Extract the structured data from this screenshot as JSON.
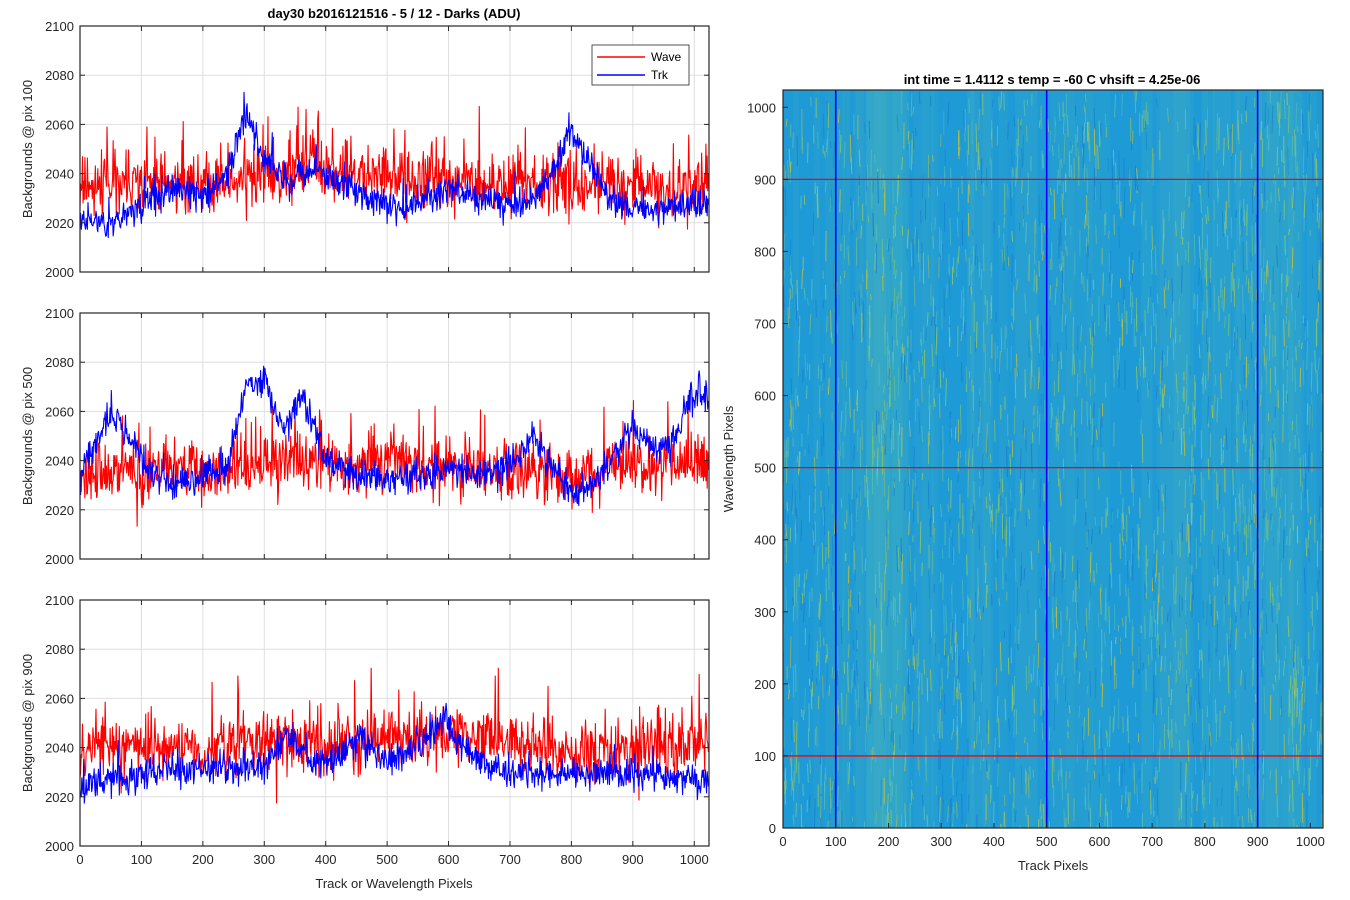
{
  "chart_data": [
    {
      "type": "line",
      "title": "day30 b2016121516 - 5 / 12 - Darks (ADU)",
      "xlabel": "",
      "ylabel": "Backgrounds @ pix 100",
      "xlim": [
        0,
        1024
      ],
      "ylim": [
        2000,
        2100
      ],
      "x_ticks": [
        "0",
        "100",
        "200",
        "300",
        "400",
        "500",
        "600",
        "700",
        "800",
        "900",
        "1000"
      ],
      "y_ticks": [
        "2000",
        "2020",
        "2040",
        "2060",
        "2080",
        "2100"
      ],
      "grid": true,
      "legend": {
        "placement": "top-right"
      },
      "x_count": 1024,
      "series": [
        {
          "name": "Wave",
          "color": "#ff0000",
          "baseline": 2035,
          "noise": 9,
          "spike_rate": 0.06,
          "spike_amp": 22,
          "seed": 11,
          "anchors": [
            [
              0,
              2034
            ],
            [
              150,
              2036
            ],
            [
              300,
              2038
            ],
            [
              380,
              2042
            ],
            [
              500,
              2038
            ],
            [
              650,
              2036
            ],
            [
              800,
              2035
            ],
            [
              1024,
              2036
            ]
          ]
        },
        {
          "name": "Trk",
          "color": "#0000ff",
          "baseline": 2030,
          "noise": 5,
          "spike_rate": 0.02,
          "spike_amp": 10,
          "seed": 23,
          "anchors": [
            [
              0,
              2022
            ],
            [
              40,
              2020
            ],
            [
              80,
              2024
            ],
            [
              120,
              2030
            ],
            [
              160,
              2034
            ],
            [
              200,
              2030
            ],
            [
              240,
              2040
            ],
            [
              270,
              2066
            ],
            [
              300,
              2046
            ],
            [
              340,
              2036
            ],
            [
              380,
              2044
            ],
            [
              420,
              2036
            ],
            [
              470,
              2030
            ],
            [
              520,
              2026
            ],
            [
              560,
              2030
            ],
            [
              600,
              2034
            ],
            [
              650,
              2030
            ],
            [
              700,
              2026
            ],
            [
              740,
              2030
            ],
            [
              780,
              2046
            ],
            [
              800,
              2058
            ],
            [
              830,
              2044
            ],
            [
              860,
              2030
            ],
            [
              900,
              2026
            ],
            [
              950,
              2026
            ],
            [
              1024,
              2028
            ]
          ]
        }
      ]
    },
    {
      "type": "line",
      "title": "",
      "xlabel": "",
      "ylabel": "Backgrounds @ pix 500",
      "xlim": [
        0,
        1024
      ],
      "ylim": [
        2000,
        2100
      ],
      "x_ticks": [
        "0",
        "100",
        "200",
        "300",
        "400",
        "500",
        "600",
        "700",
        "800",
        "900",
        "1000"
      ],
      "y_ticks": [
        "2000",
        "2020",
        "2040",
        "2060",
        "2080",
        "2100"
      ],
      "grid": true,
      "x_count": 1024,
      "series": [
        {
          "name": "Wave",
          "color": "#ff0000",
          "baseline": 2036,
          "noise": 9,
          "spike_rate": 0.06,
          "spike_amp": 22,
          "seed": 37,
          "anchors": [
            [
              0,
              2034
            ],
            [
              200,
              2036
            ],
            [
              400,
              2040
            ],
            [
              600,
              2038
            ],
            [
              800,
              2034
            ],
            [
              1024,
              2040
            ]
          ]
        },
        {
          "name": "Trk",
          "color": "#0000ff",
          "baseline": 2034,
          "noise": 5,
          "spike_rate": 0.02,
          "spike_amp": 10,
          "seed": 41,
          "anchors": [
            [
              0,
              2032
            ],
            [
              20,
              2046
            ],
            [
              50,
              2060
            ],
            [
              80,
              2050
            ],
            [
              110,
              2036
            ],
            [
              150,
              2030
            ],
            [
              200,
              2034
            ],
            [
              240,
              2038
            ],
            [
              270,
              2070
            ],
            [
              300,
              2072
            ],
            [
              330,
              2052
            ],
            [
              360,
              2066
            ],
            [
              400,
              2042
            ],
            [
              450,
              2034
            ],
            [
              500,
              2032
            ],
            [
              560,
              2034
            ],
            [
              600,
              2036
            ],
            [
              650,
              2034
            ],
            [
              700,
              2038
            ],
            [
              740,
              2050
            ],
            [
              770,
              2036
            ],
            [
              800,
              2026
            ],
            [
              840,
              2032
            ],
            [
              870,
              2042
            ],
            [
              900,
              2054
            ],
            [
              940,
              2044
            ],
            [
              970,
              2050
            ],
            [
              1000,
              2068
            ],
            [
              1024,
              2064
            ]
          ]
        }
      ]
    },
    {
      "type": "line",
      "title": "",
      "xlabel": "Track or Wavelength Pixels",
      "ylabel": "Backgrounds @ pix 900",
      "xlim": [
        0,
        1024
      ],
      "ylim": [
        2000,
        2100
      ],
      "x_ticks": [
        "0",
        "100",
        "200",
        "300",
        "400",
        "500",
        "600",
        "700",
        "800",
        "900",
        "1000"
      ],
      "y_ticks": [
        "2000",
        "2020",
        "2040",
        "2060",
        "2080",
        "2100"
      ],
      "grid": true,
      "x_count": 1024,
      "series": [
        {
          "name": "Wave",
          "color": "#ff0000",
          "baseline": 2040,
          "noise": 9,
          "spike_rate": 0.06,
          "spike_amp": 22,
          "seed": 53,
          "anchors": [
            [
              0,
              2040
            ],
            [
              200,
              2040
            ],
            [
              400,
              2042
            ],
            [
              600,
              2046
            ],
            [
              800,
              2038
            ],
            [
              1024,
              2042
            ]
          ]
        },
        {
          "name": "Trk",
          "color": "#0000ff",
          "baseline": 2030,
          "noise": 5,
          "spike_rate": 0.02,
          "spike_amp": 10,
          "seed": 67,
          "anchors": [
            [
              0,
              2024
            ],
            [
              100,
              2030
            ],
            [
              200,
              2032
            ],
            [
              300,
              2032
            ],
            [
              340,
              2046
            ],
            [
              380,
              2034
            ],
            [
              420,
              2036
            ],
            [
              460,
              2044
            ],
            [
              500,
              2034
            ],
            [
              560,
              2042
            ],
            [
              590,
              2052
            ],
            [
              620,
              2040
            ],
            [
              660,
              2034
            ],
            [
              700,
              2030
            ],
            [
              800,
              2030
            ],
            [
              900,
              2030
            ],
            [
              1024,
              2026
            ]
          ]
        }
      ]
    },
    {
      "type": "heatmap",
      "title": "int time = 1.4112 s    temp = -60 C    vhsift = 4.25e-06",
      "xlabel": "Track Pixels",
      "ylabel": "Wavelength Pixels",
      "xlim": [
        0,
        1024
      ],
      "ylim": [
        0,
        1024
      ],
      "x_ticks": [
        "0",
        "100",
        "200",
        "300",
        "400",
        "500",
        "600",
        "700",
        "800",
        "900",
        "1000"
      ],
      "y_ticks": [
        "0",
        "100",
        "200",
        "300",
        "400",
        "500",
        "600",
        "700",
        "800",
        "900",
        "1000"
      ],
      "colormap": "parula",
      "base_color": "#1e9ad6",
      "streak_colors": [
        "#5cc0b4",
        "#8cc76a",
        "#c2c23a",
        "#177fcf"
      ],
      "vertical_lines": {
        "color": "#0000ff",
        "values": [
          100,
          500,
          900
        ]
      },
      "horizontal_lines": {
        "color": "#ff0000",
        "values": [
          100,
          500,
          900
        ]
      }
    }
  ]
}
